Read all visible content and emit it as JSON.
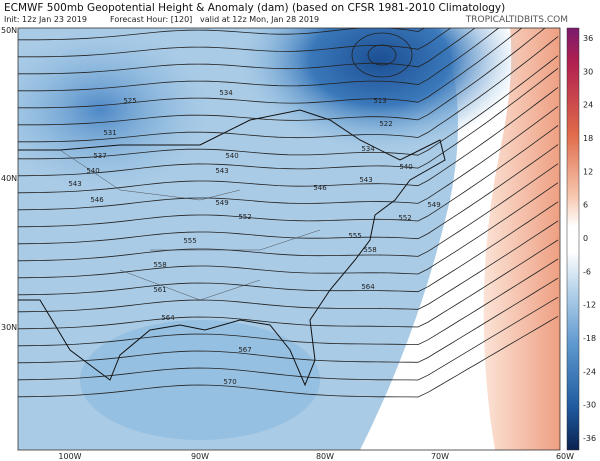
{
  "header": {
    "title": "ECMWF 500mb Geopotential Height & Anomaly (dam) (based on CFSR 1981-2010 Climatology)",
    "init": "Init: 12z Jan 23 2019",
    "forecast_hour": "Forecast Hour: [120]",
    "valid": "valid at 12z Mon, Jan 28 2019",
    "watermark": "TROPICALTIDBITS.COM"
  },
  "latitude_labels": [
    "50N",
    "40N",
    "30N"
  ],
  "longitude_labels": [
    "100W",
    "90W",
    "80W",
    "70W",
    "60W"
  ],
  "colorbar_labels": [
    36,
    30,
    24,
    18,
    12,
    6,
    0,
    -6,
    -12,
    -18,
    -24,
    -30,
    -36
  ],
  "contour_labels": [
    525,
    531,
    537,
    540,
    543,
    546,
    534,
    540,
    543,
    549,
    552,
    555,
    558,
    561,
    564,
    567,
    570,
    546,
    543,
    555,
    558,
    564,
    552,
    549,
    540,
    534,
    522,
    513
  ]
}
